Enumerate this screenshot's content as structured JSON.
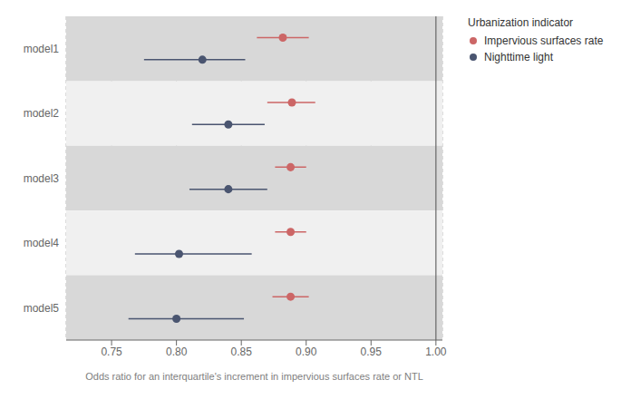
{
  "chart_data": {
    "type": "forest",
    "orientation": "horizontal",
    "categories": [
      "model1",
      "model2",
      "model3",
      "model4",
      "model5"
    ],
    "series": [
      {
        "name": "Impervious surfaces rate",
        "color": "#cc6666",
        "marker": "circle",
        "values": [
          0.882,
          0.889,
          0.888,
          0.888,
          0.888
        ],
        "lo": [
          0.862,
          0.87,
          0.876,
          0.876,
          0.874
        ],
        "hi": [
          0.902,
          0.907,
          0.9,
          0.9,
          0.902
        ]
      },
      {
        "name": "Nighttime light",
        "color": "#4a5570",
        "marker": "circle",
        "values": [
          0.82,
          0.84,
          0.84,
          0.802,
          0.8
        ],
        "lo": [
          0.775,
          0.812,
          0.81,
          0.768,
          0.763
        ],
        "hi": [
          0.853,
          0.868,
          0.87,
          0.858,
          0.852
        ]
      }
    ],
    "xlabel": "Odds ratio for an interquartile's increment in impervious surfaces rate or NTL",
    "xlim": [
      0.715,
      1.005
    ],
    "xticks": [
      0.75,
      {
        "value": 0.8,
        "label": "0.80"
      },
      0.85,
      {
        "value": 0.9,
        "label": "0.90"
      },
      0.95,
      {
        "value": 1,
        "label": "1.00"
      }
    ],
    "vline": 1.0,
    "vline_color": "#666666",
    "grid": true,
    "legend": "right",
    "legend_title": "Urbanization indicator"
  }
}
